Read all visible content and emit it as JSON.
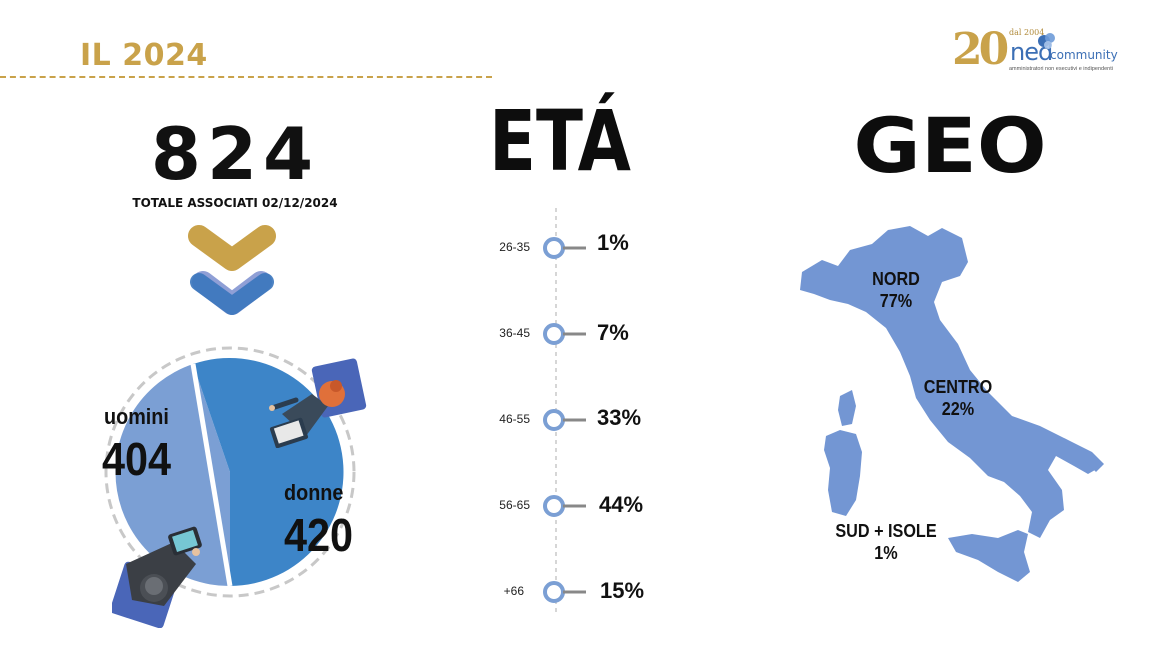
{
  "header": {
    "title": "IL 2024"
  },
  "logo": {
    "big_number": "20",
    "since": "dal 2004",
    "brand": "ned",
    "brand_suffix": "community",
    "tagline": "amministratori non esecutivi e indipendenti",
    "colors": {
      "gold": "#c9a24a",
      "blue": "#3c6fb5"
    }
  },
  "total": {
    "value": "824",
    "caption": "TOTALE ASSOCIATI 02/12/2024"
  },
  "gender": {
    "men": {
      "label": "uomini",
      "value": "404"
    },
    "women": {
      "label": "donne",
      "value": "420"
    },
    "colors": {
      "men": "#7b9fd4",
      "women": "#3d85c8"
    }
  },
  "age": {
    "title": "ETÁ",
    "items": [
      {
        "range": "26-35",
        "pct": "1%"
      },
      {
        "range": "36-45",
        "pct": "7%"
      },
      {
        "range": "46-55",
        "pct": "33%"
      },
      {
        "range": "56-65",
        "pct": "44%"
      },
      {
        "range": "+66",
        "pct": "15%"
      }
    ],
    "marker_color": "#7b9fd4"
  },
  "geo": {
    "title": "GEO",
    "regions": [
      {
        "name": "NORD",
        "pct": "77%"
      },
      {
        "name": "CENTRO",
        "pct": "22%"
      },
      {
        "name": "SUD + ISOLE",
        "pct": "1%"
      }
    ],
    "map_color": "#7396d3"
  }
}
